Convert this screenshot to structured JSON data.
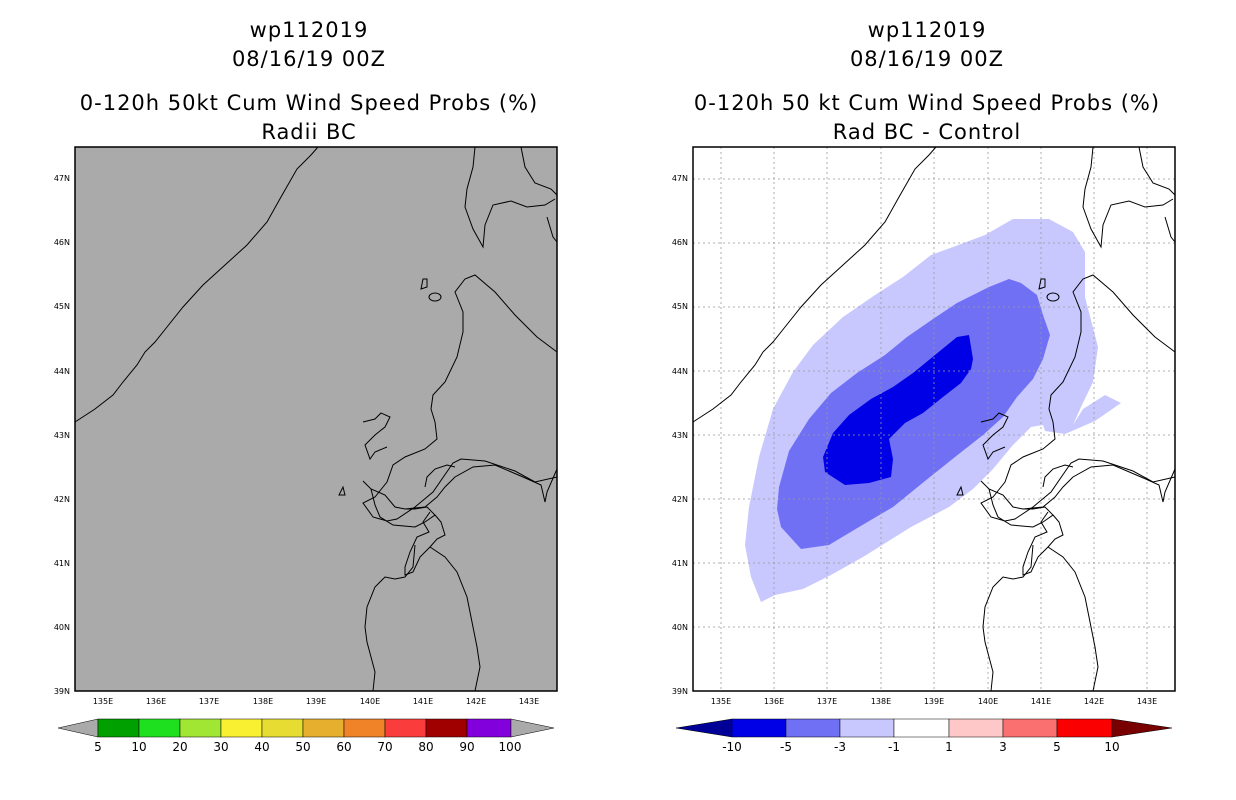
{
  "left": {
    "title_line1": "wp112019",
    "title_line2": "08/16/19 00Z",
    "title_line3": "0-120h 50kt Cum Wind Speed Probs (%)",
    "title_line4": "Radii BC",
    "map_fill": "#aaaaaa",
    "lat_labels": [
      "47N",
      "46N",
      "45N",
      "44N",
      "43N",
      "42N",
      "41N",
      "40N",
      "39N"
    ],
    "lon_labels": [
      "135E",
      "136E",
      "137E",
      "138E",
      "139E",
      "140E",
      "141E",
      "142E",
      "143E"
    ],
    "colorbar": {
      "low_arrow_color": "#aaaaaa",
      "high_arrow_color": "#aaaaaa",
      "colors": [
        "#00a000",
        "#1fe01f",
        "#a0e632",
        "#faf032",
        "#e6dc32",
        "#e6af2d",
        "#f08228",
        "#fa3c3c",
        "#a00000",
        "#8200dc"
      ],
      "labels": [
        "5",
        "10",
        "20",
        "30",
        "40",
        "50",
        "60",
        "70",
        "80",
        "90",
        "100"
      ]
    }
  },
  "right": {
    "title_line1": "wp112019",
    "title_line2": "08/16/19 00Z",
    "title_line3": "0-120h 50 kt Cum Wind Speed Probs (%)",
    "title_line4": "Rad BC - Control",
    "lat_labels": [
      "47N",
      "46N",
      "45N",
      "44N",
      "43N",
      "42N",
      "41N",
      "40N",
      "39N"
    ],
    "lon_labels": [
      "135E",
      "136E",
      "137E",
      "138E",
      "139E",
      "140E",
      "141E",
      "142E",
      "143E"
    ],
    "contour_colors": {
      "light": "#c8c8ff",
      "medium": "#7070f5",
      "dark": "#0000e6"
    },
    "colorbar": {
      "low_arrow_color": "#000096",
      "high_arrow_color": "#780000",
      "colors": [
        "#0000e6",
        "#7070f5",
        "#c8c8ff",
        "#ffffff",
        "#ffc8c8",
        "#fa7070",
        "#fa0000"
      ],
      "labels": [
        "-10",
        "-5",
        "-3",
        "-1",
        "1",
        "3",
        "5",
        "10"
      ]
    }
  }
}
